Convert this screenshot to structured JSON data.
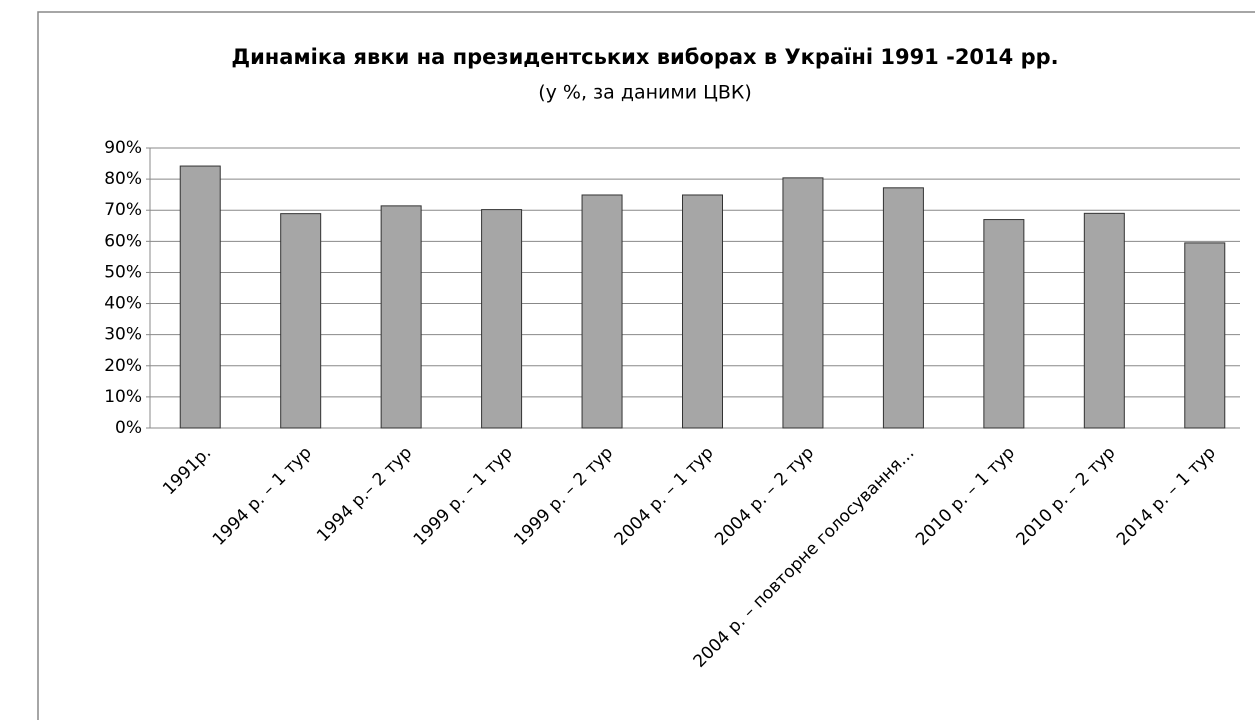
{
  "chart_data": {
    "type": "bar",
    "title": "Динаміка явки на президентських виборах в Україні 1991 -2014 рр.",
    "subtitle": "(у %, за даними ЦВК)",
    "categories": [
      "1991р.",
      "1994 р. – 1 тур",
      "1994 р.– 2 тур",
      "1999 р. – 1 тур",
      "1999 р. – 2 тур",
      "2004 р. – 1 тур",
      "2004 р. – 2 тур",
      "2004 р. – повторне голосування…",
      "2010 р. – 1 тур",
      "2010 р. – 2 тур",
      "2014 р. – 1 тур"
    ],
    "values": [
      84.2,
      68.9,
      71.4,
      70.2,
      74.9,
      74.9,
      80.4,
      77.2,
      67.0,
      69.0,
      59.5
    ],
    "color": "#a6a6a6",
    "ylim": [
      0,
      90
    ],
    "yticks": [
      {
        "value": 0,
        "label": "0%"
      },
      {
        "value": 10,
        "label": "10%"
      },
      {
        "value": 20,
        "label": "20%"
      },
      {
        "value": 30,
        "label": "30%"
      },
      {
        "value": 40,
        "label": "40%"
      },
      {
        "value": 50,
        "label": "50%"
      },
      {
        "value": 60,
        "label": "60%"
      },
      {
        "value": 70,
        "label": "70%"
      },
      {
        "value": 80,
        "label": "80%"
      },
      {
        "value": 90,
        "label": "90%"
      }
    ],
    "grid": true
  }
}
